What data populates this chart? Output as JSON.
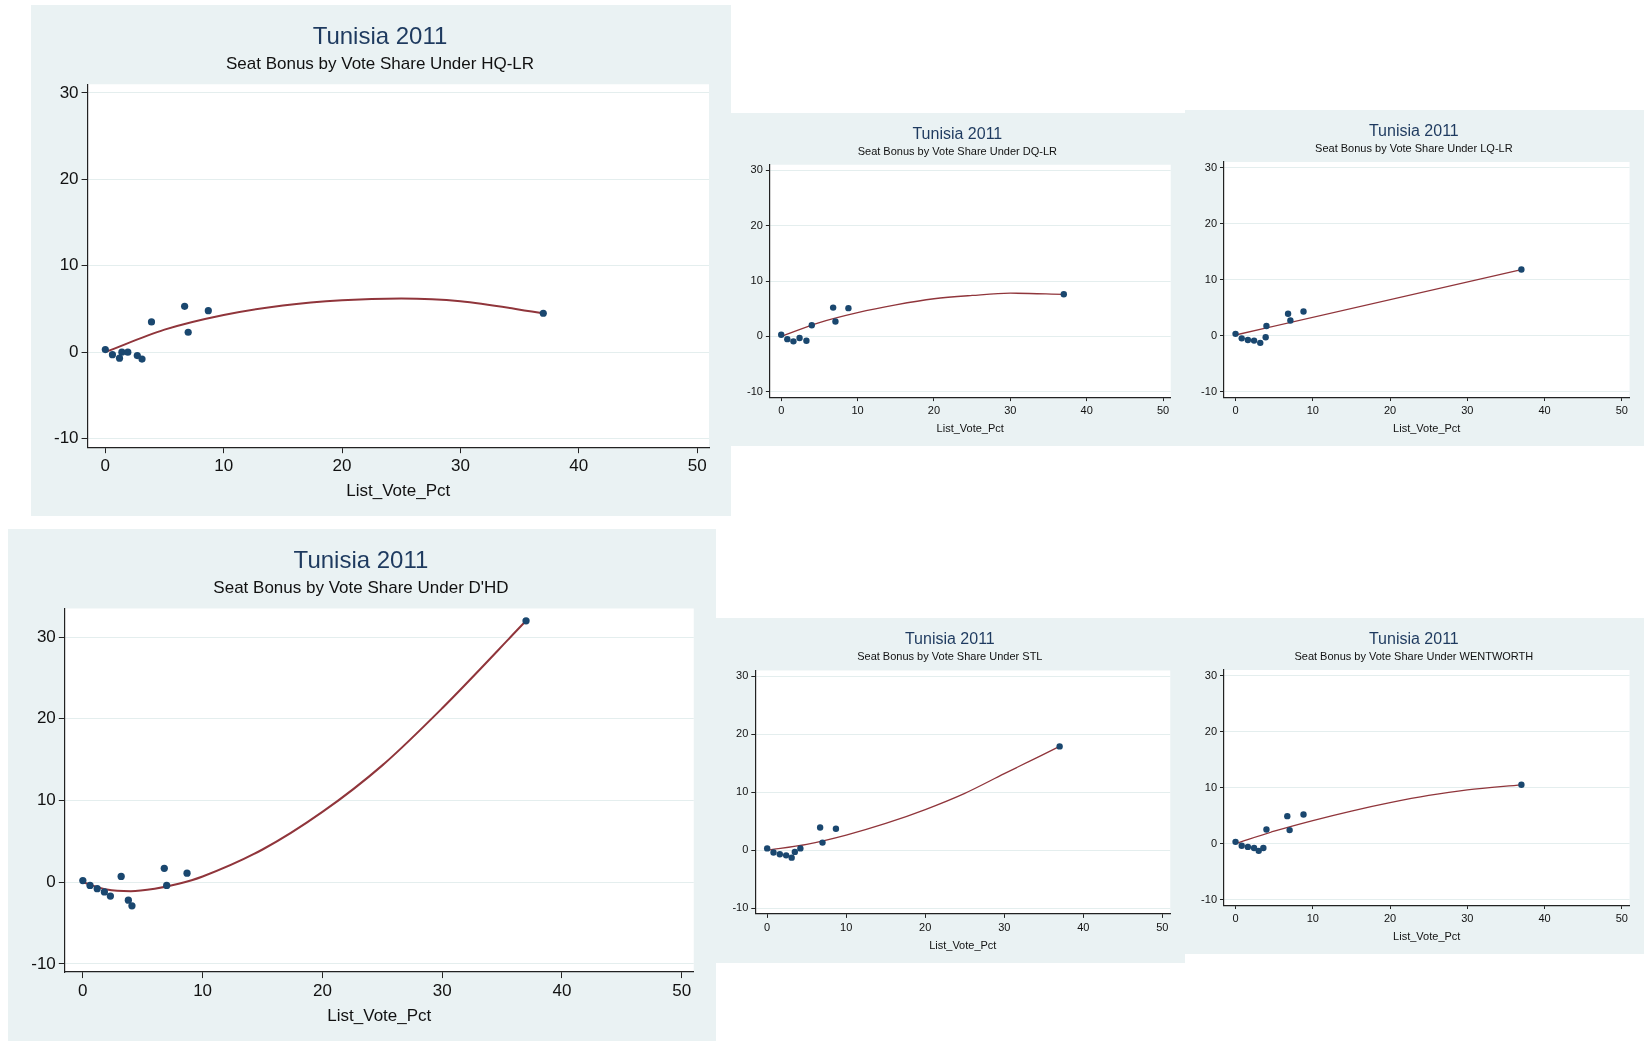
{
  "chart_data": [
    {
      "type": "scatter",
      "title": "Tunisia 2011",
      "subtitle": "Seat Bonus by Vote Share Under HQ-LR",
      "xlabel": "List_Vote_Pct",
      "xlim": [
        -1.5,
        51
      ],
      "xticks": [
        0,
        10,
        20,
        30,
        40,
        50
      ],
      "ylim": [
        -11,
        31
      ],
      "yticks": [
        -10,
        0,
        10,
        20,
        30
      ],
      "grid": "y",
      "legend": false,
      "series": [
        {
          "type": "scatter",
          "color": "#1a476f",
          "marker": "circle",
          "x": [
            0,
            0.6,
            1.2,
            1.4,
            1.9,
            2.7,
            3.1,
            3.9,
            6.7,
            7,
            8.7,
            37
          ],
          "values": [
            0.3,
            -0.3,
            -0.7,
            0,
            0,
            -0.4,
            -0.8,
            3.5,
            5.3,
            2.3,
            4.8,
            4.5
          ]
        },
        {
          "type": "line",
          "color": "#90353b",
          "marker": "none",
          "x": [
            0,
            5,
            10,
            15,
            20,
            25,
            30,
            37
          ],
          "values": [
            0,
            2.6,
            4.3,
            5.4,
            6,
            6.2,
            5.9,
            4.5
          ]
        }
      ]
    },
    {
      "type": "scatter",
      "title": "Tunisia 2011",
      "subtitle": "Seat Bonus by Vote Share Under DQ-LR",
      "xlabel": "List_Vote_Pct",
      "xlim": [
        -1.5,
        51
      ],
      "xticks": [
        0,
        10,
        20,
        30,
        40,
        50
      ],
      "ylim": [
        -11,
        31
      ],
      "yticks": [
        -10,
        0,
        10,
        20,
        30
      ],
      "grid": "y",
      "legend": false,
      "series": [
        {
          "type": "scatter",
          "color": "#1a476f",
          "marker": "circle",
          "x": [
            0,
            0.8,
            1.6,
            2.4,
            3.3,
            4,
            6.8,
            7.1,
            8.8,
            37
          ],
          "values": [
            0.3,
            -0.5,
            -0.9,
            -0.3,
            -0.8,
            2,
            5.2,
            2.7,
            5.1,
            7.6
          ]
        },
        {
          "type": "line",
          "color": "#90353b",
          "marker": "none",
          "x": [
            0,
            5,
            10,
            15,
            20,
            25,
            30,
            37
          ],
          "values": [
            0,
            2.5,
            4.3,
            5.7,
            6.8,
            7.4,
            7.8,
            7.6
          ]
        }
      ]
    },
    {
      "type": "scatter",
      "title": "Tunisia 2011",
      "subtitle": "Seat Bonus by Vote Share Under LQ-LR",
      "xlabel": "List_Vote_Pct",
      "xlim": [
        -1.5,
        51
      ],
      "xticks": [
        0,
        10,
        20,
        30,
        40,
        50
      ],
      "ylim": [
        -11,
        31
      ],
      "yticks": [
        -10,
        0,
        10,
        20,
        30
      ],
      "grid": "y",
      "legend": false,
      "series": [
        {
          "type": "scatter",
          "color": "#1a476f",
          "marker": "circle",
          "x": [
            0,
            0.8,
            1.6,
            2.4,
            3.2,
            3.9,
            4,
            6.8,
            7.1,
            8.8,
            37
          ],
          "values": [
            0.3,
            -0.5,
            -0.8,
            -0.9,
            -1.3,
            -0.3,
            1.7,
            3.9,
            2.7,
            4.3,
            11.8
          ]
        },
        {
          "type": "line",
          "color": "#90353b",
          "marker": "none",
          "x": [
            0,
            37
          ],
          "values": [
            0.1,
            11.8
          ]
        }
      ]
    },
    {
      "type": "scatter",
      "title": "Tunisia 2011",
      "subtitle": "Seat Bonus by Vote Share Under D'HD",
      "xlabel": "List_Vote_Pct",
      "xlim": [
        -1.5,
        51
      ],
      "xticks": [
        0,
        10,
        20,
        30,
        40,
        50
      ],
      "ylim": [
        -11,
        33.5
      ],
      "yticks": [
        -10,
        0,
        10,
        20,
        30
      ],
      "grid": "y",
      "legend": false,
      "series": [
        {
          "type": "scatter",
          "color": "#1a476f",
          "marker": "circle",
          "x": [
            0,
            0.6,
            1.2,
            1.8,
            2.3,
            3.2,
            3.8,
            4.1,
            6.8,
            7,
            8.7,
            37
          ],
          "values": [
            0.2,
            -0.4,
            -0.8,
            -1.2,
            -1.7,
            0.7,
            -2.2,
            -2.9,
            1.7,
            -0.4,
            1.1,
            32
          ]
        },
        {
          "type": "line",
          "color": "#90353b",
          "marker": "none",
          "x": [
            0,
            2,
            4,
            6,
            8,
            10,
            15,
            20,
            25,
            30,
            37
          ],
          "values": [
            0,
            -0.9,
            -1.1,
            -0.8,
            -0.2,
            0.7,
            4,
            8.6,
            14.3,
            21.3,
            32
          ]
        }
      ]
    },
    {
      "type": "scatter",
      "title": "Tunisia 2011",
      "subtitle": "Seat Bonus by Vote Share Under STL",
      "xlabel": "List_Vote_Pct",
      "xlim": [
        -1.5,
        51
      ],
      "xticks": [
        0,
        10,
        20,
        30,
        40,
        50
      ],
      "ylim": [
        -11,
        31
      ],
      "yticks": [
        -10,
        0,
        10,
        20,
        30
      ],
      "grid": "y",
      "legend": false,
      "series": [
        {
          "type": "scatter",
          "color": "#1a476f",
          "marker": "circle",
          "x": [
            0,
            0.8,
            1.6,
            2.4,
            3.1,
            3.5,
            4.2,
            6.7,
            7,
            8.7,
            37
          ],
          "values": [
            0.3,
            -0.4,
            -0.7,
            -0.9,
            -1.3,
            -0.3,
            0.3,
            3.9,
            1.3,
            3.7,
            17.9
          ]
        },
        {
          "type": "line",
          "color": "#90353b",
          "marker": "none",
          "x": [
            0,
            5,
            10,
            15,
            20,
            25,
            30,
            37
          ],
          "values": [
            0,
            1,
            2.6,
            4.6,
            7,
            9.8,
            13.2,
            17.9
          ]
        }
      ]
    },
    {
      "type": "scatter",
      "title": "Tunisia 2011",
      "subtitle": "Seat Bonus by Vote Share Under WENTWORTH",
      "xlabel": "List_Vote_Pct",
      "xlim": [
        -1.5,
        51
      ],
      "xticks": [
        0,
        10,
        20,
        30,
        40,
        50
      ],
      "ylim": [
        -11,
        31
      ],
      "yticks": [
        -10,
        0,
        10,
        20,
        30
      ],
      "grid": "y",
      "legend": false,
      "series": [
        {
          "type": "scatter",
          "color": "#1a476f",
          "marker": "circle",
          "x": [
            0,
            0.8,
            1.6,
            2.4,
            3,
            3.6,
            4,
            6.7,
            7,
            8.8,
            37
          ],
          "values": [
            0.3,
            -0.4,
            -0.6,
            -0.8,
            -1.3,
            -0.8,
            2.5,
            4.9,
            2.4,
            5.2,
            10.5
          ]
        },
        {
          "type": "line",
          "color": "#90353b",
          "marker": "none",
          "x": [
            0,
            5,
            10,
            15,
            20,
            25,
            30,
            37
          ],
          "values": [
            0,
            2.2,
            4.1,
            5.8,
            7.3,
            8.6,
            9.6,
            10.5
          ]
        }
      ]
    }
  ]
}
